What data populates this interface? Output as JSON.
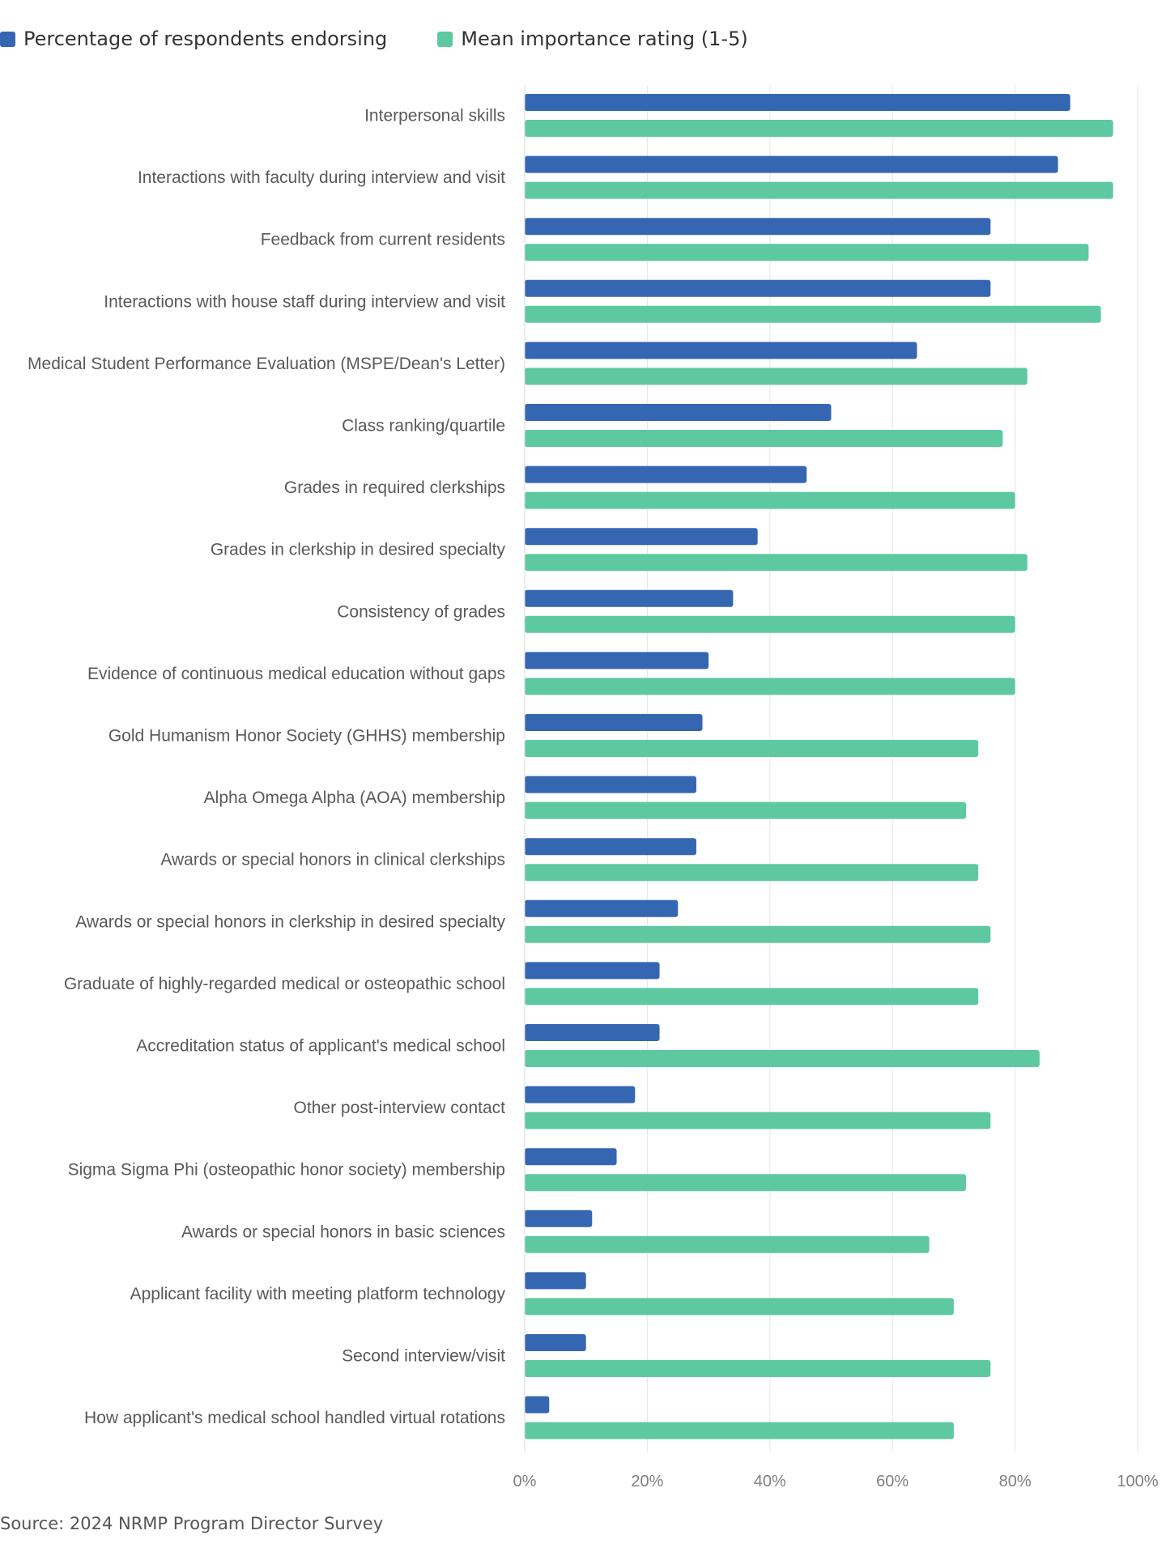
{
  "legend": {
    "series1_label": "Percentage of respondents endorsing",
    "series2_label": "Mean importance rating (1-5)"
  },
  "source": "Source: 2024 NRMP Program Director Survey",
  "colors": {
    "series1": "#3566b1",
    "series2": "#5ec9a1",
    "grid": "#e6e6e6",
    "axis_text": "#7f7f7f",
    "label_text": "#595959"
  },
  "chart_data": {
    "type": "bar",
    "orientation": "horizontal",
    "categories": [
      "Interpersonal skills",
      "Interactions with faculty during interview and visit",
      "Feedback from current residents",
      "Interactions with house staff during interview and visit",
      "Medical Student Performance Evaluation (MSPE/Dean's Letter)",
      "Class ranking/quartile",
      "Grades in required clerkships",
      "Grades in clerkship in desired specialty",
      "Consistency of grades",
      "Evidence of continuous medical education without gaps",
      "Gold Humanism Honor Society (GHHS) membership",
      "Alpha Omega Alpha (AOA) membership",
      "Awards or special honors in clinical clerkships",
      "Awards or special honors in clerkship in desired specialty",
      "Graduate of highly-regarded medical or osteopathic school",
      "Accreditation status of applicant's medical school",
      "Other post-interview contact",
      "Sigma Sigma Phi (osteopathic honor society) membership",
      "Awards or special honors in basic sciences",
      "Applicant facility with meeting platform technology",
      "Second interview/visit",
      "How applicant's medical school handled virtual rotations"
    ],
    "series": [
      {
        "name": "Percentage of respondents endorsing",
        "values": [
          89,
          87,
          76,
          76,
          64,
          50,
          46,
          38,
          34,
          30,
          29,
          28,
          28,
          25,
          22,
          22,
          18,
          15,
          11,
          10,
          10,
          4
        ]
      },
      {
        "name": "Mean importance rating (1-5)",
        "values": [
          96,
          96,
          92,
          94,
          82,
          78,
          80,
          82,
          80,
          80,
          74,
          72,
          74,
          76,
          74,
          84,
          76,
          72,
          66,
          70,
          76,
          70
        ]
      }
    ],
    "xlim": [
      0,
      100
    ],
    "x_ticks": [
      0,
      20,
      40,
      60,
      80,
      100
    ],
    "x_tick_labels": [
      "0%",
      "20%",
      "40%",
      "60%",
      "80%",
      "100%"
    ],
    "grid": true,
    "legend_position": "top-left"
  }
}
